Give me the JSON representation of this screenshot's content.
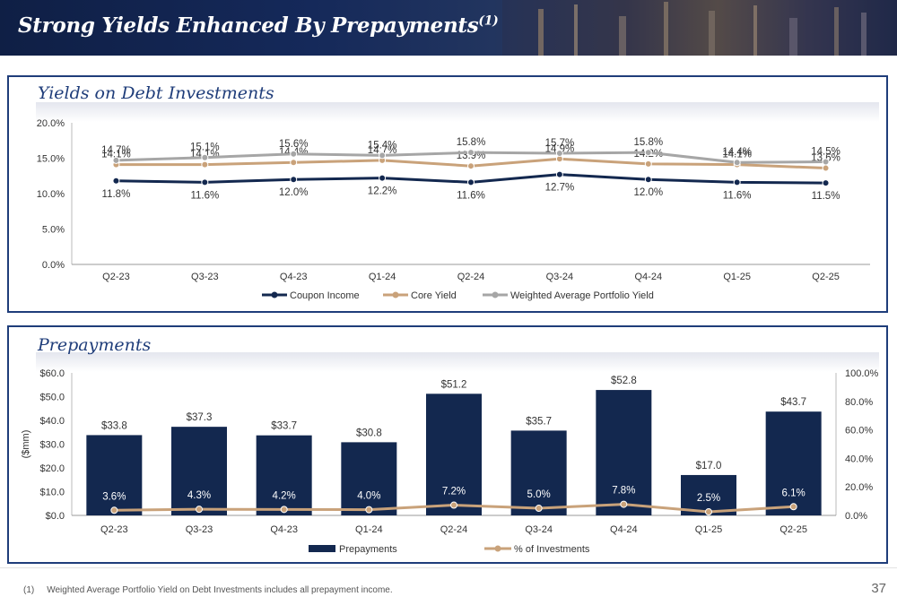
{
  "header": {
    "title": "Strong Yields Enhanced By Prepayments",
    "title_sup": "(1)"
  },
  "panel1": {
    "title": "Yields on Debt Investments"
  },
  "panel2": {
    "title": "Prepayments"
  },
  "colors": {
    "navy": "#13284f",
    "tan": "#c9a27a",
    "gray": "#a6a6a6",
    "frame": "#1f3d7a"
  },
  "chart_data": [
    {
      "type": "line",
      "categories": [
        "Q2-23",
        "Q3-23",
        "Q4-23",
        "Q1-24",
        "Q2-24",
        "Q3-24",
        "Q4-24",
        "Q1-25",
        "Q2-25"
      ],
      "y_ticks": [
        "0.0%",
        "5.0%",
        "10.0%",
        "15.0%",
        "20.0%"
      ],
      "ylim": [
        0,
        20
      ],
      "series": [
        {
          "name": "Coupon Income",
          "values": [
            11.8,
            11.6,
            12.0,
            12.2,
            11.6,
            12.7,
            12.0,
            11.6,
            11.5
          ],
          "labels": [
            "11.8%",
            "11.6%",
            "12.0%",
            "12.2%",
            "11.6%",
            "12.7%",
            "12.0%",
            "11.6%",
            "11.5%"
          ],
          "color": "#13284f"
        },
        {
          "name": "Core Yield",
          "values": [
            14.1,
            14.1,
            14.4,
            14.7,
            13.9,
            14.9,
            14.2,
            14.1,
            13.6
          ],
          "labels": [
            "14.1%",
            "14.1%",
            "14.4%",
            "14.7%",
            "13.9%",
            "14.9%",
            "14.2%",
            "14.1%",
            "13.6%"
          ],
          "color": "#c9a27a"
        },
        {
          "name": "Weighted Average Portfolio Yield",
          "values": [
            14.7,
            15.1,
            15.6,
            15.4,
            15.8,
            15.7,
            15.8,
            14.4,
            14.5
          ],
          "labels": [
            "14.7%",
            "15.1%",
            "15.6%",
            "15.4%",
            "15.8%",
            "15.7%",
            "15.8%",
            "14.4%",
            "14.5%"
          ],
          "color": "#a6a6a6"
        }
      ],
      "legend": "bottom"
    },
    {
      "type": "bar",
      "categories": [
        "Q2-23",
        "Q3-23",
        "Q4-23",
        "Q1-24",
        "Q2-24",
        "Q3-24",
        "Q4-24",
        "Q1-25",
        "Q2-25"
      ],
      "ylabel": "($mm)",
      "y_ticks": [
        "$0.0",
        "$10.0",
        "$20.0",
        "$30.0",
        "$40.0",
        "$50.0",
        "$60.0"
      ],
      "ylim": [
        0,
        60
      ],
      "y2_ticks": [
        "0.0%",
        "20.0%",
        "40.0%",
        "60.0%",
        "80.0%",
        "100.0%"
      ],
      "y2lim": [
        0,
        100
      ],
      "series": [
        {
          "name": "Prepayments",
          "type": "bar",
          "values": [
            33.8,
            37.3,
            33.7,
            30.8,
            51.2,
            35.7,
            52.8,
            17.0,
            43.7
          ],
          "labels": [
            "$33.8",
            "$37.3",
            "$33.7",
            "$30.8",
            "$51.2",
            "$35.7",
            "$52.8",
            "$17.0",
            "$43.7"
          ],
          "color": "#13284f"
        },
        {
          "name": "% of Investments",
          "type": "line",
          "axis": "right",
          "values": [
            3.6,
            4.3,
            4.2,
            4.0,
            7.2,
            5.0,
            7.8,
            2.5,
            6.1
          ],
          "labels": [
            "3.6%",
            "4.3%",
            "4.2%",
            "4.0%",
            "7.2%",
            "5.0%",
            "7.8%",
            "2.5%",
            "6.1%"
          ],
          "color": "#c9a27a"
        }
      ],
      "legend": "bottom"
    }
  ],
  "footnote": {
    "num": "(1)",
    "text": "Weighted Average Portfolio Yield on Debt Investments includes all prepayment income."
  },
  "page_number": "37"
}
